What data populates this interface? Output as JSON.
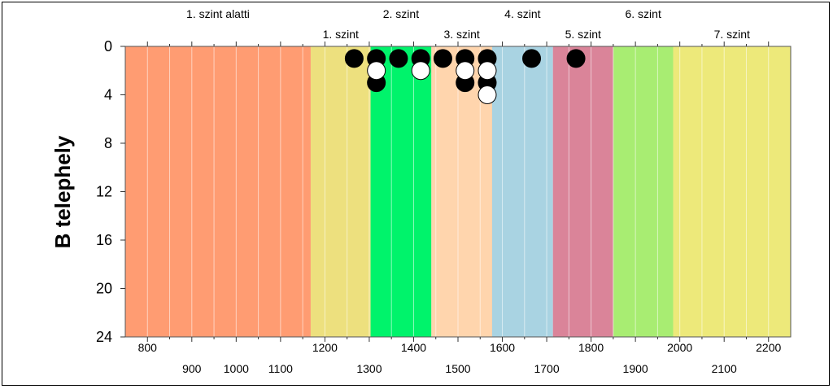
{
  "chart_data": {
    "type": "scatter",
    "ylabel": "B telephely",
    "xlim": [
      750,
      2250
    ],
    "ylim": [
      0,
      24
    ],
    "y_inverted": true,
    "x_ticks_lower_row": [
      900,
      1000,
      1100,
      1300,
      1500,
      1700,
      1900,
      2100
    ],
    "x_ticks_upper_row": [
      800,
      1200,
      1400,
      1600,
      1800,
      2000,
      2200
    ],
    "x_ticks": [
      800,
      900,
      1000,
      1100,
      1200,
      1300,
      1400,
      1500,
      1600,
      1700,
      1800,
      1900,
      2000,
      2100,
      2200
    ],
    "x_ticks_skipped": [
      1400,
      1800
    ],
    "y_ticks": [
      0,
      4,
      8,
      12,
      16,
      20,
      24
    ],
    "y_tick_labels": [
      "0",
      "4",
      "8",
      "12",
      "16",
      "20",
      "24"
    ],
    "x_tick_labels_shown": {
      "800": "800",
      "900": "900",
      "1000": "1000",
      "1100": "1100",
      "1200": "1200",
      "1300": "1300",
      "1400": "1400",
      "1500": "1500",
      "1600": "1600",
      "1700": "1700",
      "1800": "1800",
      "1900": "1900",
      "2000": "2000",
      "2100": "2100",
      "2200": "2200"
    },
    "bands": [
      {
        "label": "1. szint alatti",
        "from": 750,
        "to": 1168,
        "color": "#ff9c72",
        "label_row": "top"
      },
      {
        "label": "1. szint",
        "from": 1168,
        "to": 1303,
        "color": "#ede07e",
        "label_row": "bottom"
      },
      {
        "label": "2. szint",
        "from": 1303,
        "to": 1440,
        "color": "#00f36b",
        "label_row": "top"
      },
      {
        "label": "3. szint",
        "from": 1440,
        "to": 1577,
        "color": "#ffd5ad",
        "label_row": "bottom"
      },
      {
        "label": "4. szint",
        "from": 1577,
        "to": 1714,
        "color": "#a9d3e2",
        "label_row": "top"
      },
      {
        "label": "5. szint",
        "from": 1714,
        "to": 1850,
        "color": "#da8499",
        "label_row": "bottom"
      },
      {
        "label": "6. szint",
        "from": 1850,
        "to": 1985,
        "color": "#a8ed72",
        "label_row": "top"
      },
      {
        "label": "7. szint",
        "from": 1985,
        "to": 2250,
        "color": "#ede97a",
        "label_row": "bottom"
      }
    ],
    "grid": "vertical minor lines every 50",
    "series": [
      {
        "marker": "filled-black-circle",
        "points": [
          {
            "x": 1266,
            "y": 1
          },
          {
            "x": 1316,
            "y": 1
          },
          {
            "x": 1316,
            "y": 3
          },
          {
            "x": 1366,
            "y": 1
          },
          {
            "x": 1416,
            "y": 1
          },
          {
            "x": 1466,
            "y": 1
          },
          {
            "x": 1516,
            "y": 1
          },
          {
            "x": 1516,
            "y": 3
          },
          {
            "x": 1566,
            "y": 1
          },
          {
            "x": 1566,
            "y": 3
          },
          {
            "x": 1666,
            "y": 1
          },
          {
            "x": 1766,
            "y": 1
          }
        ]
      },
      {
        "marker": "open-white-circle",
        "points": [
          {
            "x": 1316,
            "y": 2
          },
          {
            "x": 1416,
            "y": 2
          },
          {
            "x": 1516,
            "y": 2
          },
          {
            "x": 1566,
            "y": 2
          },
          {
            "x": 1566,
            "y": 4
          }
        ]
      }
    ]
  }
}
